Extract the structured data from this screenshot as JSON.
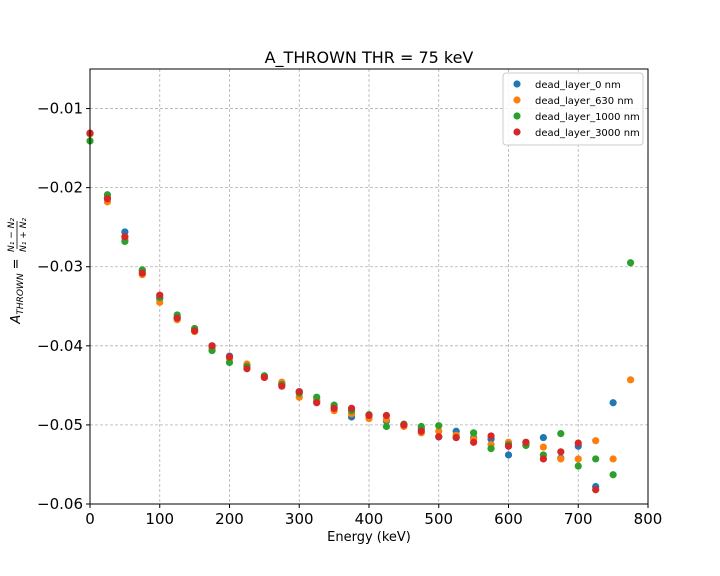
{
  "chart_data": {
    "type": "scatter",
    "title": "A_THROWN THR = 75 keV",
    "xlabel": "Energy (keV)",
    "ylabel": "A_{THROWN} = (N1 − N2)/(N1 + N2)",
    "ylabel_main": "A",
    "ylabel_sub": "THROWN",
    "ylabel_eq": " =",
    "ylabel_num": "N₁ − N₂",
    "ylabel_den": "N₁ + N₂",
    "xlim": [
      0,
      800
    ],
    "ylim": [
      -0.06,
      -0.005
    ],
    "xticks": [
      0,
      100,
      200,
      300,
      400,
      500,
      600,
      700,
      800
    ],
    "xtick_labels": [
      "0",
      "100",
      "200",
      "300",
      "400",
      "500",
      "600",
      "700",
      "800"
    ],
    "yticks": [
      -0.06,
      -0.05,
      -0.04,
      -0.03,
      -0.02,
      -0.01
    ],
    "ytick_labels": [
      "−0.06",
      "−0.05",
      "−0.04",
      "−0.03",
      "−0.02",
      "−0.01"
    ],
    "grid": true,
    "legend_position": "top-right",
    "series": [
      {
        "name": "dead_layer_0 nm",
        "color": "#1f77b4",
        "points": [
          [
            0,
            -0.0132
          ],
          [
            25,
            -0.0213
          ],
          [
            50,
            -0.0256
          ],
          [
            75,
            -0.0305
          ],
          [
            100,
            -0.034
          ],
          [
            125,
            -0.0364
          ],
          [
            150,
            -0.038
          ],
          [
            175,
            -0.04
          ],
          [
            200,
            -0.0413
          ],
          [
            225,
            -0.0425
          ],
          [
            250,
            -0.0438
          ],
          [
            275,
            -0.0448
          ],
          [
            300,
            -0.0458
          ],
          [
            325,
            -0.047
          ],
          [
            350,
            -0.0478
          ],
          [
            375,
            -0.049
          ],
          [
            400,
            -0.0488
          ],
          [
            425,
            -0.0495
          ],
          [
            450,
            -0.05
          ],
          [
            475,
            -0.0505
          ],
          [
            500,
            -0.0515
          ],
          [
            525,
            -0.0508
          ],
          [
            550,
            -0.0516
          ],
          [
            575,
            -0.0518
          ],
          [
            600,
            -0.0538
          ],
          [
            625,
            -0.0522
          ],
          [
            650,
            -0.0516
          ],
          [
            675,
            -0.0542
          ],
          [
            700,
            -0.0527
          ],
          [
            725,
            -0.0578
          ],
          [
            750,
            -0.0472
          ]
        ]
      },
      {
        "name": "dead_layer_630 nm",
        "color": "#ff7f0e",
        "points": [
          [
            0,
            -0.0132
          ],
          [
            25,
            -0.0218
          ],
          [
            50,
            -0.0265
          ],
          [
            75,
            -0.031
          ],
          [
            100,
            -0.0345
          ],
          [
            125,
            -0.0367
          ],
          [
            150,
            -0.0382
          ],
          [
            175,
            -0.0403
          ],
          [
            200,
            -0.0416
          ],
          [
            225,
            -0.0423
          ],
          [
            250,
            -0.044
          ],
          [
            275,
            -0.0446
          ],
          [
            300,
            -0.0465
          ],
          [
            325,
            -0.0468
          ],
          [
            350,
            -0.0482
          ],
          [
            375,
            -0.0486
          ],
          [
            400,
            -0.0492
          ],
          [
            425,
            -0.0493
          ],
          [
            450,
            -0.0502
          ],
          [
            475,
            -0.051
          ],
          [
            500,
            -0.0508
          ],
          [
            525,
            -0.0513
          ],
          [
            550,
            -0.0518
          ],
          [
            575,
            -0.0525
          ],
          [
            600,
            -0.0522
          ],
          [
            625,
            -0.0525
          ],
          [
            650,
            -0.0528
          ],
          [
            675,
            -0.0543
          ],
          [
            700,
            -0.0543
          ],
          [
            725,
            -0.052
          ],
          [
            750,
            -0.0543
          ],
          [
            775,
            -0.0443
          ]
        ]
      },
      {
        "name": "dead_layer_1000 nm",
        "color": "#2ca02c",
        "points": [
          [
            0,
            -0.0141
          ],
          [
            25,
            -0.0209
          ],
          [
            50,
            -0.0268
          ],
          [
            75,
            -0.0304
          ],
          [
            100,
            -0.0339
          ],
          [
            125,
            -0.0361
          ],
          [
            150,
            -0.0378
          ],
          [
            175,
            -0.0406
          ],
          [
            200,
            -0.0421
          ],
          [
            225,
            -0.0426
          ],
          [
            250,
            -0.0438
          ],
          [
            275,
            -0.0449
          ],
          [
            300,
            -0.046
          ],
          [
            325,
            -0.0465
          ],
          [
            350,
            -0.0475
          ],
          [
            375,
            -0.0482
          ],
          [
            400,
            -0.0487
          ],
          [
            425,
            -0.0502
          ],
          [
            450,
            -0.0499
          ],
          [
            475,
            -0.0502
          ],
          [
            500,
            -0.0501
          ],
          [
            525,
            -0.0516
          ],
          [
            550,
            -0.051
          ],
          [
            575,
            -0.053
          ],
          [
            600,
            -0.0525
          ],
          [
            625,
            -0.0526
          ],
          [
            650,
            -0.0538
          ],
          [
            675,
            -0.0511
          ],
          [
            700,
            -0.0552
          ],
          [
            725,
            -0.0543
          ],
          [
            750,
            -0.0563
          ],
          [
            775,
            -0.0295
          ]
        ]
      },
      {
        "name": "dead_layer_3000 nm",
        "color": "#d62728",
        "points": [
          [
            0,
            -0.0131
          ],
          [
            25,
            -0.0214
          ],
          [
            50,
            -0.0262
          ],
          [
            75,
            -0.0308
          ],
          [
            100,
            -0.0336
          ],
          [
            125,
            -0.0365
          ],
          [
            150,
            -0.0381
          ],
          [
            175,
            -0.04
          ],
          [
            200,
            -0.0414
          ],
          [
            225,
            -0.0429
          ],
          [
            250,
            -0.044
          ],
          [
            275,
            -0.0451
          ],
          [
            300,
            -0.0458
          ],
          [
            325,
            -0.0472
          ],
          [
            350,
            -0.0479
          ],
          [
            375,
            -0.0479
          ],
          [
            400,
            -0.0488
          ],
          [
            425,
            -0.0488
          ],
          [
            450,
            -0.05
          ],
          [
            475,
            -0.0508
          ],
          [
            500,
            -0.0515
          ],
          [
            525,
            -0.0516
          ],
          [
            550,
            -0.0522
          ],
          [
            575,
            -0.0514
          ],
          [
            600,
            -0.0527
          ],
          [
            625,
            -0.0522
          ],
          [
            650,
            -0.0543
          ],
          [
            675,
            -0.0534
          ],
          [
            700,
            -0.0523
          ],
          [
            725,
            -0.0582
          ]
        ]
      }
    ]
  }
}
